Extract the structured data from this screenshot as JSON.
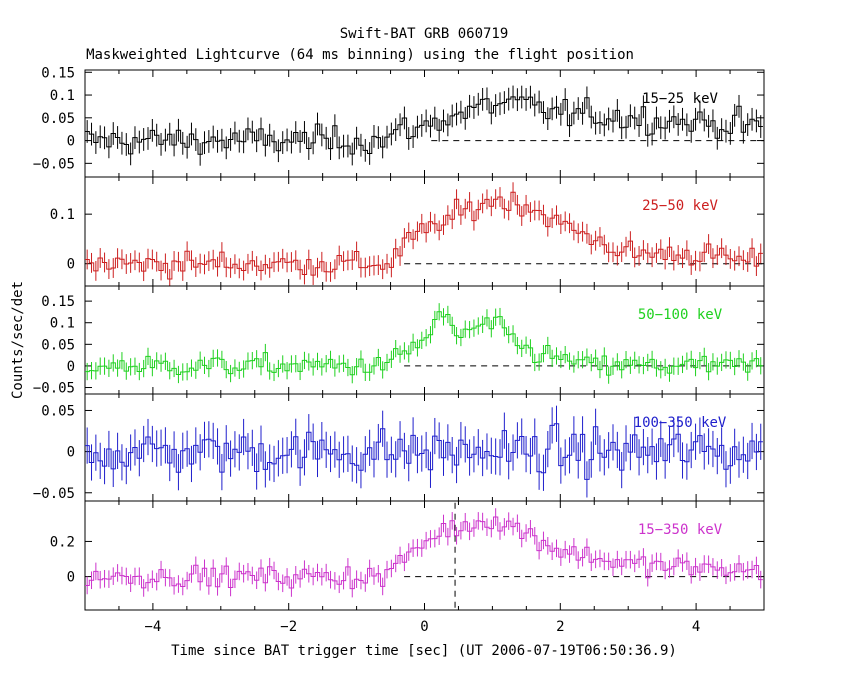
{
  "chart_data": {
    "type": "line",
    "title": "Swift-BAT GRB 060719",
    "subtitle": "Maskweighted Lightcurve (64 ms binning) using the flight position",
    "xlabel": "Time since BAT trigger time [sec] (UT 2006-07-19T06:50:36.9)",
    "ylabel": "Counts/sec/det",
    "xlim": [
      -5,
      5
    ],
    "x_ticks": [
      -4,
      -2,
      0,
      2,
      4
    ],
    "x_tick_labels": [
      "−4",
      "−2",
      "0",
      "2",
      "4"
    ],
    "bin_width_s": 0.064,
    "trigger_marker_x": 0.45,
    "panels": [
      {
        "name": "15−25 keV",
        "color": "#000000",
        "ylim": [
          -0.08,
          0.155
        ],
        "yticks": [
          -0.05,
          0,
          0.05,
          0.1,
          0.15
        ],
        "ytick_labels": [
          "−0.05",
          "0",
          "0.05",
          "0.1",
          "0.15"
        ],
        "baseline": 0,
        "dashed_from_x": 0.1,
        "err": 0.025,
        "profile": [
          [
            -5,
            0.0
          ],
          [
            -0.6,
            0.0
          ],
          [
            -0.4,
            0.02
          ],
          [
            0.0,
            0.03
          ],
          [
            0.3,
            0.05
          ],
          [
            1.0,
            0.08
          ],
          [
            1.4,
            0.08
          ],
          [
            2.0,
            0.06
          ],
          [
            3.0,
            0.05
          ],
          [
            4.0,
            0.04
          ],
          [
            5.0,
            0.03
          ]
        ]
      },
      {
        "name": "25−50 keV",
        "color": "#cc1f1f",
        "ylim": [
          -0.045,
          0.175
        ],
        "yticks": [
          0,
          0.1
        ],
        "ytick_labels": [
          "0",
          "0.1"
        ],
        "baseline": 0,
        "dashed_from_x": -0.3,
        "err": 0.02,
        "profile": [
          [
            -5,
            0.0
          ],
          [
            -0.5,
            0.0
          ],
          [
            -0.3,
            0.04
          ],
          [
            0.2,
            0.08
          ],
          [
            1.0,
            0.13
          ],
          [
            1.5,
            0.12
          ],
          [
            2.0,
            0.08
          ],
          [
            3.0,
            0.02
          ],
          [
            4.0,
            0.02
          ],
          [
            5.0,
            0.0
          ]
        ]
      },
      {
        "name": "50−100 keV",
        "color": "#1fd11f",
        "ylim": [
          -0.065,
          0.185
        ],
        "yticks": [
          -0.05,
          0,
          0.05,
          0.1,
          0.15
        ],
        "ytick_labels": [
          "−0.05",
          "0",
          "0.05",
          "0.1",
          "0.15"
        ],
        "baseline": 0,
        "dashed_from_x": -0.3,
        "err": 0.02,
        "profile": [
          [
            -5,
            0.0
          ],
          [
            -0.6,
            0.0
          ],
          [
            -0.3,
            0.03
          ],
          [
            0.0,
            0.06
          ],
          [
            0.25,
            0.12
          ],
          [
            0.5,
            0.07
          ],
          [
            1.0,
            0.1
          ],
          [
            1.3,
            0.06
          ],
          [
            1.6,
            0.03
          ],
          [
            2.5,
            0.0
          ],
          [
            5.0,
            0.0
          ]
        ]
      },
      {
        "name": "100−350 keV",
        "color": "#1f1fcc",
        "ylim": [
          -0.06,
          0.07
        ],
        "yticks": [
          -0.05,
          0,
          0.05
        ],
        "ytick_labels": [
          "−0.05",
          "0",
          "0.05"
        ],
        "baseline": 0,
        "dashed_from_x": null,
        "err": 0.022,
        "profile": [
          [
            -5,
            0.0
          ],
          [
            5,
            0.0
          ]
        ]
      },
      {
        "name": "15−350 keV",
        "color": "#cc33cc",
        "ylim": [
          -0.19,
          0.43
        ],
        "yticks": [
          0,
          0.2
        ],
        "ytick_labels": [
          "0",
          "0.2"
        ],
        "baseline": 0,
        "dashed_from_x": -0.3,
        "err": 0.05,
        "profile": [
          [
            -5,
            0.0
          ],
          [
            -0.6,
            0.0
          ],
          [
            -0.3,
            0.1
          ],
          [
            0.2,
            0.25
          ],
          [
            0.5,
            0.28
          ],
          [
            1.0,
            0.33
          ],
          [
            1.5,
            0.25
          ],
          [
            2.0,
            0.15
          ],
          [
            3.0,
            0.07
          ],
          [
            4.0,
            0.05
          ],
          [
            5.0,
            0.03
          ]
        ]
      }
    ]
  }
}
